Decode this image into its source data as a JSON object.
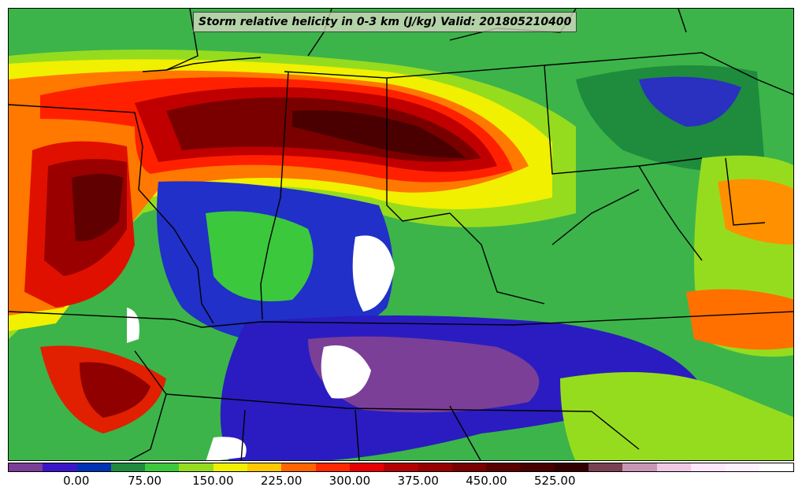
{
  "title": "Storm relative helicity in 0-3 km (J/kg) Valid: 201805210400",
  "colorbar": {
    "colors": [
      "#7b3f98",
      "#3a16c8",
      "#0032b4",
      "#1e8c3c",
      "#3cc83c",
      "#96dc1e",
      "#f0f000",
      "#ffc800",
      "#ff6400",
      "#ff2800",
      "#e60000",
      "#b40000",
      "#960000",
      "#780000",
      "#5a0000",
      "#460000",
      "#320000",
      "#784050",
      "#c896b4",
      "#f0c8e6",
      "#ffe6ff",
      "#fff0ff",
      "#ffffff"
    ],
    "tick_labels": [
      "0.00",
      "75.00",
      "150.00",
      "225.00",
      "300.00",
      "375.00",
      "450.00",
      "525.00"
    ]
  },
  "map": {
    "background_color": "#3cb44a",
    "regions": [
      {
        "name": "north-red-band",
        "color": "#ff3000"
      },
      {
        "name": "north-darkred-band",
        "color": "#8a0000"
      },
      {
        "name": "west-red-area",
        "color": "#e01000"
      },
      {
        "name": "southeast-blue",
        "color": "#2020c8"
      },
      {
        "name": "white-patches",
        "color": "#ffffff"
      }
    ]
  }
}
